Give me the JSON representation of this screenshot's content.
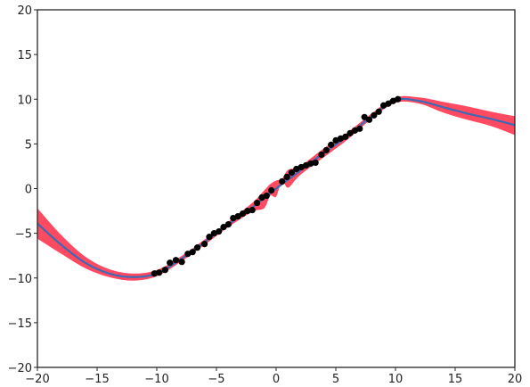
{
  "chart_data": {
    "type": "scatter",
    "title": "",
    "xlabel": "",
    "ylabel": "",
    "xlim": [
      -20,
      20
    ],
    "ylim": [
      -20,
      20
    ],
    "grid": false,
    "xticks": [
      -20,
      -15,
      -10,
      -5,
      0,
      5,
      10,
      15,
      20
    ],
    "yticks": [
      -20,
      -15,
      -10,
      -5,
      0,
      5,
      10,
      15,
      20
    ],
    "xtick_labels": [
      "−20",
      "−15",
      "−10",
      "−5",
      "0",
      "5",
      "10",
      "15",
      "20"
    ],
    "ytick_labels": [
      "−20",
      "−15",
      "−10",
      "−5",
      "0",
      "5",
      "10",
      "15",
      "20"
    ],
    "series": [
      {
        "kind": "band",
        "color": "#ff3b55",
        "x": [
          -20,
          -18,
          -16,
          -14,
          -12,
          -10,
          -8,
          -6,
          -4,
          -2,
          -1,
          -0.5,
          0,
          0.5,
          1,
          2,
          4,
          6,
          8,
          10,
          12,
          14,
          16,
          18,
          20
        ],
        "lower": [
          -5.6,
          -7.3,
          -8.9,
          -9.9,
          -10.3,
          -9.8,
          -8.2,
          -6.3,
          -4.3,
          -2.6,
          -2.2,
          -0.8,
          -0.9,
          0.9,
          0.1,
          1.5,
          3.5,
          5.5,
          7.8,
          9.6,
          9.5,
          8.5,
          7.7,
          7.0,
          6.0
        ],
        "upper": [
          -2.2,
          -5.2,
          -7.6,
          -9.0,
          -9.5,
          -9.1,
          -7.6,
          -5.7,
          -3.7,
          -1.6,
          -0.2,
          0.5,
          0.9,
          1.1,
          2.1,
          2.5,
          4.5,
          6.3,
          8.4,
          10.2,
          10.2,
          9.7,
          9.2,
          8.6,
          8.1
        ]
      },
      {
        "kind": "line",
        "color": "#3d6ab3",
        "x": [
          -20,
          -18,
          -16,
          -14,
          -12,
          -10,
          -8,
          -6,
          -4,
          -2,
          0,
          2,
          4,
          6,
          8,
          10,
          12,
          14,
          16,
          18,
          20
        ],
        "y": [
          -3.9,
          -6.3,
          -8.3,
          -9.5,
          -9.9,
          -9.5,
          -7.9,
          -6.0,
          -4.0,
          -2.1,
          0.0,
          2.0,
          4.0,
          5.9,
          8.1,
          9.9,
          9.8,
          9.1,
          8.4,
          7.8,
          7.1
        ]
      },
      {
        "kind": "points",
        "color": "#000000",
        "x": [
          -10.2,
          -9.8,
          -9.3,
          -8.9,
          -8.4,
          -7.9,
          -7.4,
          -7.0,
          -6.6,
          -6.0,
          -5.6,
          -5.2,
          -4.8,
          -4.4,
          -4.0,
          -3.6,
          -3.2,
          -2.8,
          -2.4,
          -2.0,
          -1.6,
          -1.2,
          -0.8,
          -0.4,
          0.5,
          0.9,
          1.3,
          1.7,
          2.1,
          2.5,
          2.9,
          3.3,
          3.8,
          4.2,
          4.6,
          5.0,
          5.4,
          5.8,
          6.2,
          6.6,
          7.0,
          7.4,
          7.8,
          8.2,
          8.6,
          9.0,
          9.4,
          9.8,
          10.2
        ],
        "y": [
          -9.5,
          -9.4,
          -9.1,
          -8.3,
          -8.0,
          -8.2,
          -7.3,
          -7.1,
          -6.6,
          -6.2,
          -5.4,
          -5.0,
          -4.8,
          -4.3,
          -4.0,
          -3.3,
          -3.1,
          -2.8,
          -2.5,
          -2.4,
          -1.6,
          -1.0,
          -0.8,
          -0.2,
          0.8,
          1.3,
          1.8,
          2.2,
          2.4,
          2.6,
          2.8,
          2.9,
          3.8,
          4.3,
          4.9,
          5.4,
          5.6,
          5.8,
          6.2,
          6.5,
          6.7,
          8.0,
          7.7,
          8.2,
          8.6,
          9.3,
          9.5,
          9.8,
          10.0
        ]
      }
    ]
  }
}
